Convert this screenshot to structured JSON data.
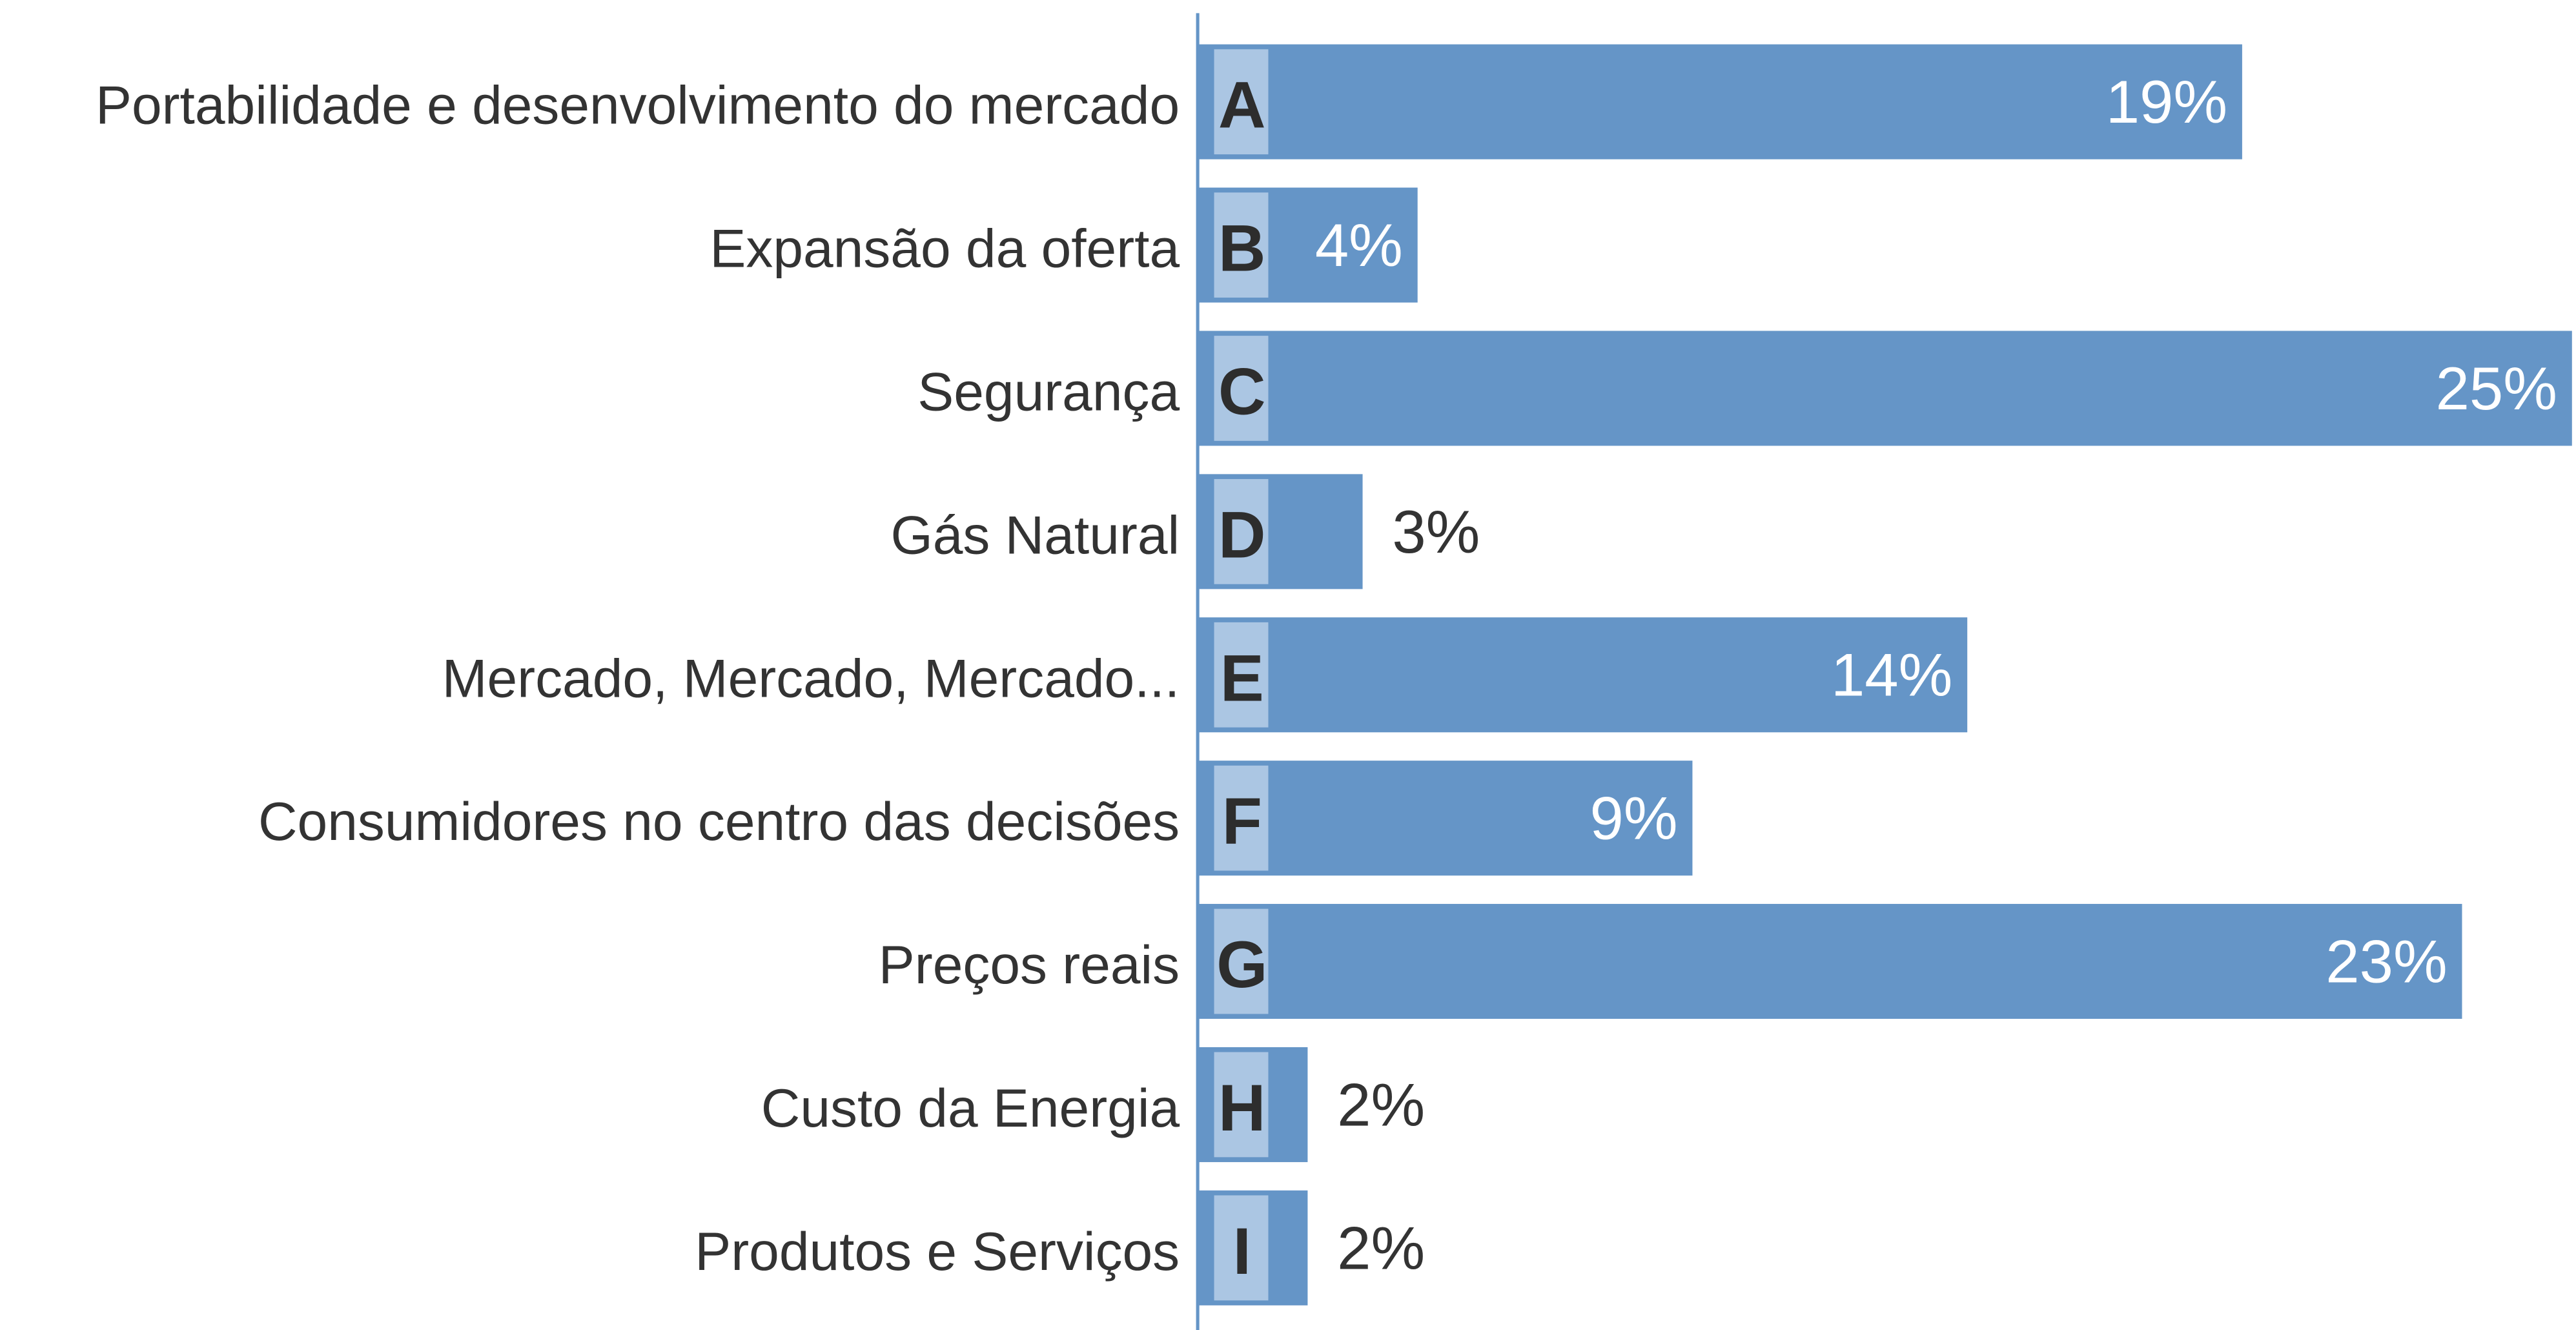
{
  "chart_data": {
    "type": "bar",
    "orientation": "horizontal",
    "categories": [
      "Portabilidade e desenvolvimento do mercado",
      "Expansão da oferta",
      "Segurança",
      "Gás Natural",
      "Mercado, Mercado, Mercado...",
      "Consumidores no centro das decisões",
      "Preços reais",
      "Custo da Energia",
      "Produtos e Serviços"
    ],
    "letters": [
      "A",
      "B",
      "C",
      "D",
      "E",
      "F",
      "G",
      "H",
      "I"
    ],
    "values": [
      19,
      4,
      25,
      3,
      14,
      9,
      23,
      2,
      2
    ],
    "value_labels": [
      "19%",
      "4%",
      "25%",
      "3%",
      "14%",
      "9%",
      "23%",
      "2%",
      "2%"
    ],
    "color": "#6595c7",
    "letter_color": "#abc6e3",
    "xlim": [
      0,
      25
    ]
  }
}
